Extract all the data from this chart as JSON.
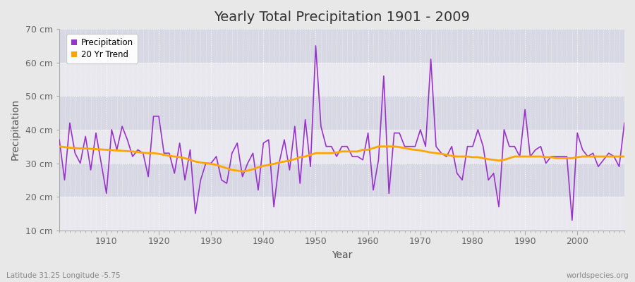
{
  "title": "Yearly Total Precipitation 1901 - 2009",
  "xlabel": "Year",
  "ylabel": "Precipitation",
  "subtitle": "Latitude 31.25 Longitude -5.75",
  "watermark": "worldspecies.org",
  "precip_color": "#9932CC",
  "trend_color": "#FFA500",
  "fig_bg_color": "#e8e8e8",
  "plot_bg_color": "#e0e0e8",
  "grid_color": "#ffffff",
  "ylim": [
    10,
    70
  ],
  "yticks": [
    10,
    20,
    30,
    40,
    50,
    60,
    70
  ],
  "ytick_labels": [
    "10 cm",
    "20 cm",
    "30 cm",
    "40 cm",
    "50 cm",
    "60 cm",
    "70 cm"
  ],
  "xlim": [
    1901,
    2009
  ],
  "years": [
    1901,
    1902,
    1903,
    1904,
    1905,
    1906,
    1907,
    1908,
    1909,
    1910,
    1911,
    1912,
    1913,
    1914,
    1915,
    1916,
    1917,
    1918,
    1919,
    1920,
    1921,
    1922,
    1923,
    1924,
    1925,
    1926,
    1927,
    1928,
    1929,
    1930,
    1931,
    1932,
    1933,
    1934,
    1935,
    1936,
    1937,
    1938,
    1939,
    1940,
    1941,
    1942,
    1943,
    1944,
    1945,
    1946,
    1947,
    1948,
    1949,
    1950,
    1951,
    1952,
    1953,
    1954,
    1955,
    1956,
    1957,
    1958,
    1959,
    1960,
    1961,
    1962,
    1963,
    1964,
    1965,
    1966,
    1967,
    1968,
    1969,
    1970,
    1971,
    1972,
    1973,
    1974,
    1975,
    1976,
    1977,
    1978,
    1979,
    1980,
    1981,
    1982,
    1983,
    1984,
    1985,
    1986,
    1987,
    1988,
    1989,
    1990,
    1991,
    1992,
    1993,
    1994,
    1995,
    1996,
    1997,
    1998,
    1999,
    2000,
    2001,
    2002,
    2003,
    2004,
    2005,
    2006,
    2007,
    2008,
    2009
  ],
  "precip": [
    37,
    25,
    42,
    33,
    30,
    38,
    28,
    39,
    30,
    21,
    40,
    34,
    41,
    37,
    32,
    34,
    33,
    26,
    44,
    44,
    33,
    33,
    27,
    36,
    25,
    34,
    15,
    25,
    30,
    30,
    32,
    25,
    24,
    33,
    36,
    26,
    30,
    33,
    22,
    36,
    37,
    17,
    30,
    37,
    28,
    41,
    24,
    43,
    29,
    65,
    41,
    35,
    35,
    32,
    35,
    35,
    32,
    32,
    31,
    39,
    22,
    31,
    56,
    21,
    39,
    39,
    35,
    35,
    35,
    40,
    35,
    61,
    35,
    33,
    32,
    35,
    27,
    25,
    35,
    35,
    40,
    35,
    25,
    27,
    17,
    40,
    35,
    35,
    32,
    46,
    32,
    34,
    35,
    30,
    32,
    32,
    32,
    32,
    13,
    39,
    34,
    32,
    33,
    29,
    31,
    33,
    32,
    29,
    42
  ],
  "trend": [
    35.0,
    34.8,
    34.6,
    34.5,
    34.4,
    34.4,
    34.3,
    34.2,
    34.1,
    34.0,
    33.9,
    33.8,
    33.7,
    33.6,
    33.5,
    33.3,
    33.1,
    33.0,
    33.0,
    32.8,
    32.5,
    32.2,
    32.0,
    31.8,
    31.5,
    31.0,
    30.5,
    30.2,
    30.0,
    29.8,
    29.5,
    29.0,
    28.5,
    28.0,
    27.8,
    27.6,
    27.8,
    28.2,
    28.8,
    29.2,
    29.5,
    29.8,
    30.2,
    30.5,
    30.8,
    31.2,
    31.8,
    32.0,
    32.5,
    33.0,
    33.0,
    33.0,
    33.0,
    33.2,
    33.5,
    33.5,
    33.5,
    33.5,
    34.0,
    34.0,
    34.5,
    35.0,
    35.0,
    35.0,
    35.0,
    34.8,
    34.5,
    34.2,
    34.0,
    33.8,
    33.5,
    33.2,
    33.0,
    32.8,
    32.5,
    32.2,
    32.0,
    32.0,
    32.0,
    31.8,
    31.8,
    31.5,
    31.2,
    31.0,
    30.8,
    31.0,
    31.5,
    32.0,
    32.0,
    32.0,
    32.0,
    32.0,
    32.0,
    31.8,
    31.8,
    31.5,
    31.5,
    31.5,
    31.5,
    31.8,
    32.0,
    32.0,
    32.0,
    32.0,
    32.0,
    32.0,
    32.0,
    32.0,
    32.0
  ]
}
